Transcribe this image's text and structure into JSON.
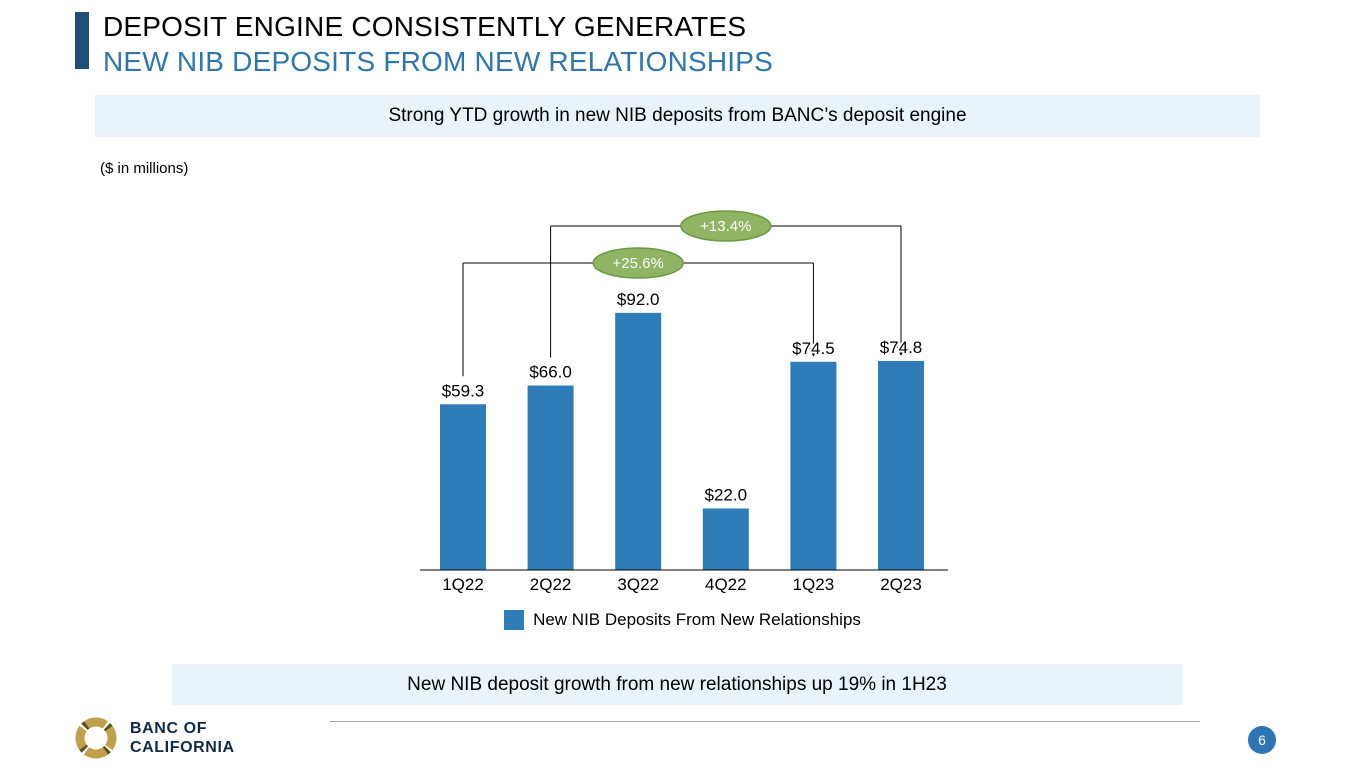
{
  "header": {
    "title_line1": "DEPOSIT ENGINE CONSISTENTLY GENERATES",
    "title_line2": "NEW NIB DEPOSITS FROM NEW RELATIONSHIPS"
  },
  "banners": {
    "top": "Strong YTD growth in new NIB deposits from BANC’s deposit engine",
    "bottom": "New NIB deposit growth from new relationships up 19% in 1H23"
  },
  "units_note": "($ in millions)",
  "chart_data": {
    "type": "bar",
    "categories": [
      "1Q22",
      "2Q22",
      "3Q22",
      "4Q22",
      "1Q23",
      "2Q23"
    ],
    "values": [
      59.3,
      66.0,
      92.0,
      22.0,
      74.5,
      74.8
    ],
    "value_labels": [
      "$59.3",
      "$66.0",
      "$92.0",
      "$22.0",
      "$74.5",
      "$74.8"
    ],
    "bar_color": "#2E7CB8",
    "ylim": [
      0,
      100
    ],
    "grid": false,
    "xlabel": "",
    "ylabel": "",
    "legend": {
      "position": "bottom",
      "label": "New NIB Deposits From New Relationships",
      "swatch_color": "#2E7CB8"
    },
    "annotations": [
      {
        "label": "+25.6%",
        "from_index": 0,
        "to_index": 4,
        "fill": "#8FB564",
        "stroke": "#6C9A44"
      },
      {
        "label": "+13.4%",
        "from_index": 1,
        "to_index": 5,
        "fill": "#8FB564",
        "stroke": "#6C9A44"
      }
    ]
  },
  "footer": {
    "logo_line1": "BANC OF",
    "logo_line2": "CALIFORNIA",
    "page_number": "6"
  },
  "colors": {
    "accent_bar": "#1F4E79",
    "title_line2": "#2E77AE",
    "banner_bg": "#E8F3FB",
    "page_circle": "#2E75B6"
  }
}
